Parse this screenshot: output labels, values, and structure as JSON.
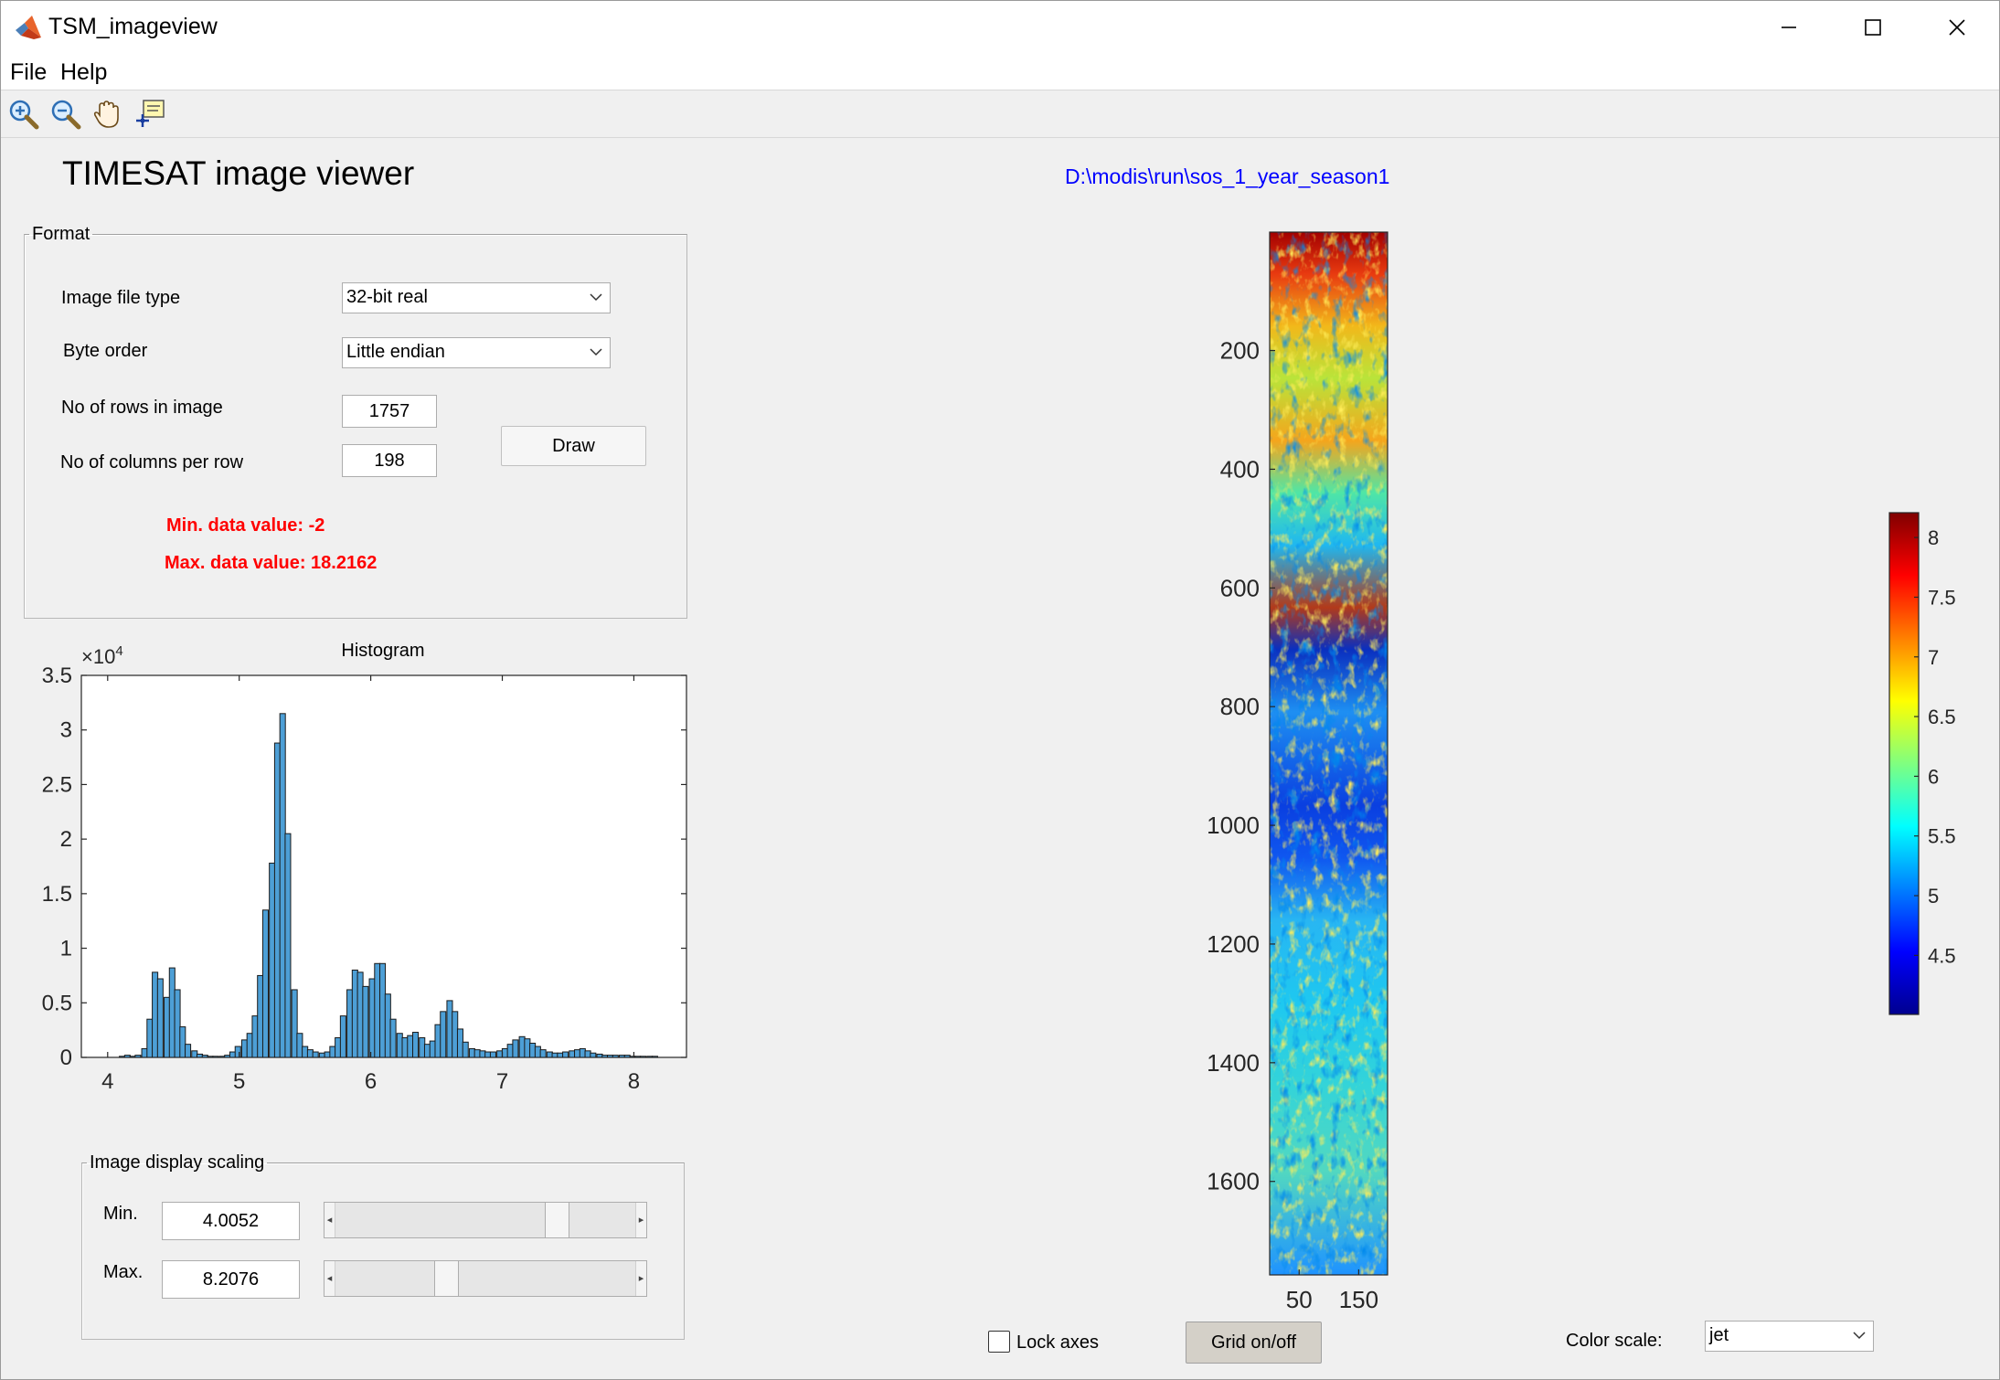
{
  "window": {
    "title": "TSM_imageview"
  },
  "menu": [
    "File",
    "Help"
  ],
  "toolbar": {
    "tools": [
      {
        "name": "zoom-in-icon"
      },
      {
        "name": "zoom-out-icon"
      },
      {
        "name": "pan-hand-icon"
      },
      {
        "name": "data-cursor-icon"
      }
    ]
  },
  "heading": "TIMESAT image viewer",
  "file_path": "D:\\modis\\run\\sos_1_year_season1",
  "format_panel": {
    "title": "Format",
    "image_file_type_label": "Image file type",
    "image_file_type_value": "32-bit real",
    "byte_order_label": "Byte order",
    "byte_order_value": "Little endian",
    "rows_label": "No of rows in image",
    "rows_value": "1757",
    "cols_label": "No of columns per row",
    "cols_value": "198",
    "draw_label": "Draw",
    "min_info": "Min. data value: -2",
    "max_info": "Max. data value: 18.2162"
  },
  "scaling_panel": {
    "title": "Image display scaling",
    "min_label": "Min.",
    "min_value": "4.0052",
    "min_slider_fraction": 0.76,
    "max_label": "Max.",
    "max_value": "8.2076",
    "max_slider_fraction": 0.36
  },
  "lock_axes_label": "Lock axes",
  "lock_axes_checked": false,
  "grid_button_label": "Grid on/off",
  "color_scale_label": "Color scale:",
  "color_scale_value": "jet",
  "colors": {
    "bar_fill": "#4d9fd6",
    "info_red": "#ff0000",
    "path_blue": "#0000ff"
  },
  "chart_data": [
    {
      "type": "bar",
      "title": "Histogram",
      "xlabel": "",
      "ylabel": "",
      "y_exponent_label": "×10^4",
      "xlim": [
        3.8,
        8.4
      ],
      "ylim": [
        0,
        3.5
      ],
      "x_ticks": [
        "4",
        "5",
        "6",
        "7",
        "8"
      ],
      "y_ticks": [
        "0",
        "0.5",
        "1",
        "1.5",
        "2",
        "2.5",
        "3",
        "3.5"
      ],
      "bin_width": 0.042,
      "bin_centers": [
        4.11,
        4.15,
        4.19,
        4.23,
        4.28,
        4.32,
        4.36,
        4.4,
        4.45,
        4.49,
        4.53,
        4.57,
        4.61,
        4.66,
        4.7,
        4.74,
        4.78,
        4.82,
        4.87,
        4.91,
        4.95,
        4.99,
        5.04,
        5.08,
        5.12,
        5.16,
        5.2,
        5.25,
        5.29,
        5.33,
        5.37,
        5.42,
        5.46,
        5.5,
        5.54,
        5.58,
        5.63,
        5.67,
        5.71,
        5.75,
        5.79,
        5.84,
        5.88,
        5.92,
        5.96,
        6.01,
        6.05,
        6.09,
        6.13,
        6.17,
        6.22,
        6.26,
        6.3,
        6.34,
        6.39,
        6.43,
        6.47,
        6.51,
        6.55,
        6.6,
        6.64,
        6.68,
        6.72,
        6.77,
        6.81,
        6.85,
        6.89,
        6.93,
        6.98,
        7.02,
        7.06,
        7.1,
        7.15,
        7.19,
        7.23,
        7.27,
        7.31,
        7.36,
        7.4,
        7.44,
        7.48,
        7.53,
        7.57,
        7.61,
        7.65,
        7.69,
        7.74,
        7.78,
        7.82,
        7.86,
        7.91,
        7.95,
        7.99,
        8.03,
        8.07,
        8.12,
        8.16
      ],
      "values": [
        0.01,
        0.02,
        0.01,
        0.02,
        0.08,
        0.35,
        0.78,
        0.72,
        0.55,
        0.82,
        0.62,
        0.28,
        0.12,
        0.06,
        0.03,
        0.02,
        0.01,
        0.01,
        0.01,
        0.02,
        0.05,
        0.1,
        0.16,
        0.22,
        0.38,
        0.75,
        1.35,
        1.78,
        2.88,
        3.15,
        2.05,
        0.62,
        0.22,
        0.1,
        0.07,
        0.05,
        0.04,
        0.05,
        0.1,
        0.18,
        0.38,
        0.62,
        0.8,
        0.78,
        0.65,
        0.72,
        0.86,
        0.86,
        0.58,
        0.35,
        0.22,
        0.18,
        0.2,
        0.23,
        0.18,
        0.12,
        0.15,
        0.3,
        0.42,
        0.52,
        0.42,
        0.26,
        0.14,
        0.08,
        0.07,
        0.06,
        0.05,
        0.05,
        0.06,
        0.08,
        0.12,
        0.16,
        0.19,
        0.17,
        0.13,
        0.1,
        0.07,
        0.05,
        0.04,
        0.04,
        0.05,
        0.06,
        0.07,
        0.08,
        0.06,
        0.04,
        0.03,
        0.02,
        0.02,
        0.02,
        0.02,
        0.02,
        0.01,
        0.01,
        0.01,
        0.01,
        0.01
      ]
    },
    {
      "type": "heatmap",
      "title": "",
      "xlabel": "",
      "ylabel": "",
      "x_ticks": [
        "50",
        "150"
      ],
      "y_ticks": [
        "200",
        "400",
        "600",
        "800",
        "1000",
        "1200",
        "1400",
        "1600"
      ],
      "rows": 1757,
      "columns": 198,
      "colormap": "jet",
      "clim": [
        4.0052,
        8.2076
      ],
      "colorbar_ticks": [
        "4.5",
        "5",
        "5.5",
        "6",
        "6.5",
        "7",
        "7.5",
        "8"
      ]
    }
  ]
}
